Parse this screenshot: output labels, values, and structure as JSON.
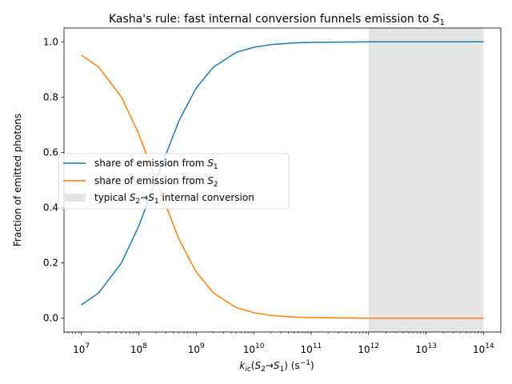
{
  "chart_data": {
    "type": "line",
    "title": {
      "text": "Kasha's rule: fast internal conversion funnels emission to ",
      "sym": "S",
      "sub": "1"
    },
    "xlabel": {
      "k": "k",
      "k_sub": "ic",
      "open": "(",
      "s2": "S",
      "s2_sub": "2",
      "arrow": "→",
      "s1": "S",
      "s1_sub": "1",
      "close": ") (s",
      "exp": "−1",
      "end": ")"
    },
    "ylabel": "Fraction of emitted photons",
    "x_scale": "log",
    "xlim": [
      5000000,
      200000000000000
    ],
    "ylim": [
      -0.05,
      1.05
    ],
    "x_ticks": [
      {
        "value": 10000000,
        "base": "10",
        "exp": "7"
      },
      {
        "value": 100000000,
        "base": "10",
        "exp": "8"
      },
      {
        "value": 1000000000,
        "base": "10",
        "exp": "9"
      },
      {
        "value": 10000000000,
        "base": "10",
        "exp": "10"
      },
      {
        "value": 100000000000,
        "base": "10",
        "exp": "11"
      },
      {
        "value": 1000000000000,
        "base": "10",
        "exp": "12"
      },
      {
        "value": 10000000000000,
        "base": "10",
        "exp": "13"
      },
      {
        "value": 100000000000000,
        "base": "10",
        "exp": "14"
      }
    ],
    "y_ticks": [
      {
        "value": 0.0,
        "label": "0.0"
      },
      {
        "value": 0.2,
        "label": "0.2"
      },
      {
        "value": 0.4,
        "label": "0.4"
      },
      {
        "value": 0.6,
        "label": "0.6"
      },
      {
        "value": 0.8,
        "label": "0.8"
      },
      {
        "value": 1.0,
        "label": "1.0"
      }
    ],
    "shaded_region": {
      "x_from": 1000000000000,
      "x_to": 100000000000000,
      "color": "#e5e5e5"
    },
    "series": [
      {
        "prefix": "share of emission from ",
        "sym": "S",
        "sub": "1",
        "color": "#1f77b4",
        "x": [
          10000000,
          20000000,
          50000000,
          100000000,
          200000000,
          500000000,
          1000000000,
          2000000000,
          5000000000,
          10000000000,
          20000000000,
          50000000000,
          100000000000,
          1000000000000,
          10000000000000,
          100000000000000
        ],
        "y": [
          0.048,
          0.091,
          0.2,
          0.333,
          0.5,
          0.714,
          0.833,
          0.909,
          0.962,
          0.98,
          0.99,
          0.996,
          0.998,
          1.0,
          1.0,
          1.0
        ]
      },
      {
        "prefix": "share of emission from ",
        "sym": "S",
        "sub": "2",
        "color": "#ff7f0e",
        "x": [
          10000000,
          20000000,
          50000000,
          100000000,
          200000000,
          500000000,
          1000000000,
          2000000000,
          5000000000,
          10000000000,
          20000000000,
          50000000000,
          100000000000,
          1000000000000,
          10000000000000,
          100000000000000
        ],
        "y": [
          0.952,
          0.909,
          0.8,
          0.667,
          0.5,
          0.286,
          0.167,
          0.091,
          0.038,
          0.02,
          0.01,
          0.004,
          0.002,
          0.0,
          0.0,
          0.0
        ]
      }
    ],
    "legend": {
      "placement": "center-left",
      "region_entry": {
        "prefix": "typical ",
        "s2": "S",
        "s2_sub": "2",
        "arrow": "→",
        "s1": "S",
        "s1_sub": "1",
        "suffix": " internal conversion"
      }
    }
  }
}
